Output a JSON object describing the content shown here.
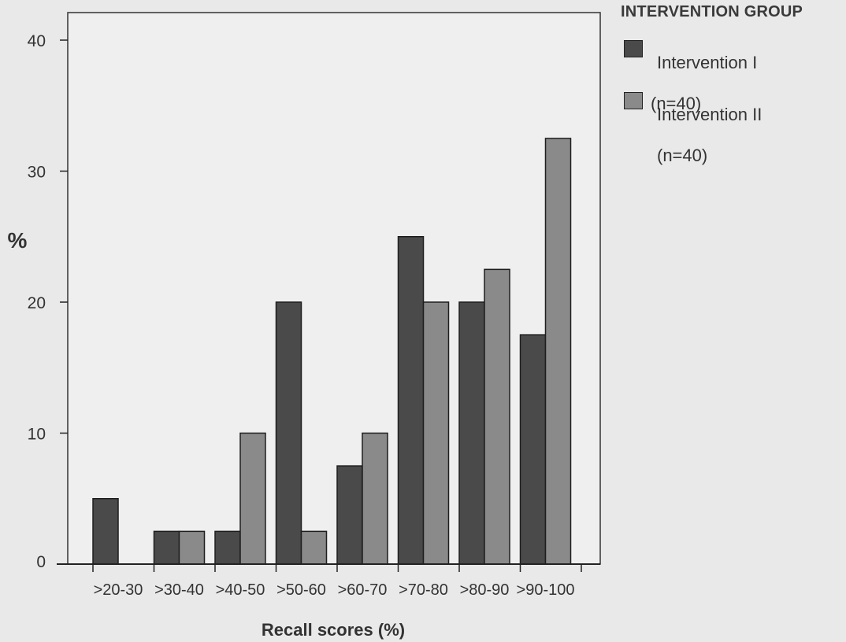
{
  "chart_data": {
    "type": "bar",
    "title": "",
    "xlabel": "Recall scores (%)",
    "ylabel": "%",
    "ylim": [
      0,
      42
    ],
    "yticks": [
      0,
      10,
      20,
      30,
      40
    ],
    "grid": false,
    "legend_position": "top-right, outside plot",
    "categories": [
      ">20-30",
      ">30-40",
      ">40-50",
      ">50-60",
      ">60-70",
      ">70-80",
      ">80-90",
      ">90-100"
    ],
    "series": [
      {
        "name": "Intervention I (n=40)",
        "color": "#4a4a4a",
        "values": [
          5,
          2.5,
          2.5,
          20,
          7.5,
          25,
          20,
          17.5
        ]
      },
      {
        "name": "Intervention II (n=40)",
        "color": "#8a8a8a",
        "values": [
          0,
          2.5,
          10,
          2.5,
          10,
          20,
          22.5,
          32.5
        ]
      }
    ],
    "legend": {
      "title": "INTERVENTION GROUP",
      "items": [
        {
          "line1": "Intervention I",
          "line2": "(n=40)"
        },
        {
          "line1": "Intervention II",
          "line2": "(n=40)"
        }
      ]
    }
  },
  "colors": {
    "background": "#e9e9e9",
    "plot_background": "#eeeeee",
    "axis": "#222222",
    "text": "#333333"
  }
}
